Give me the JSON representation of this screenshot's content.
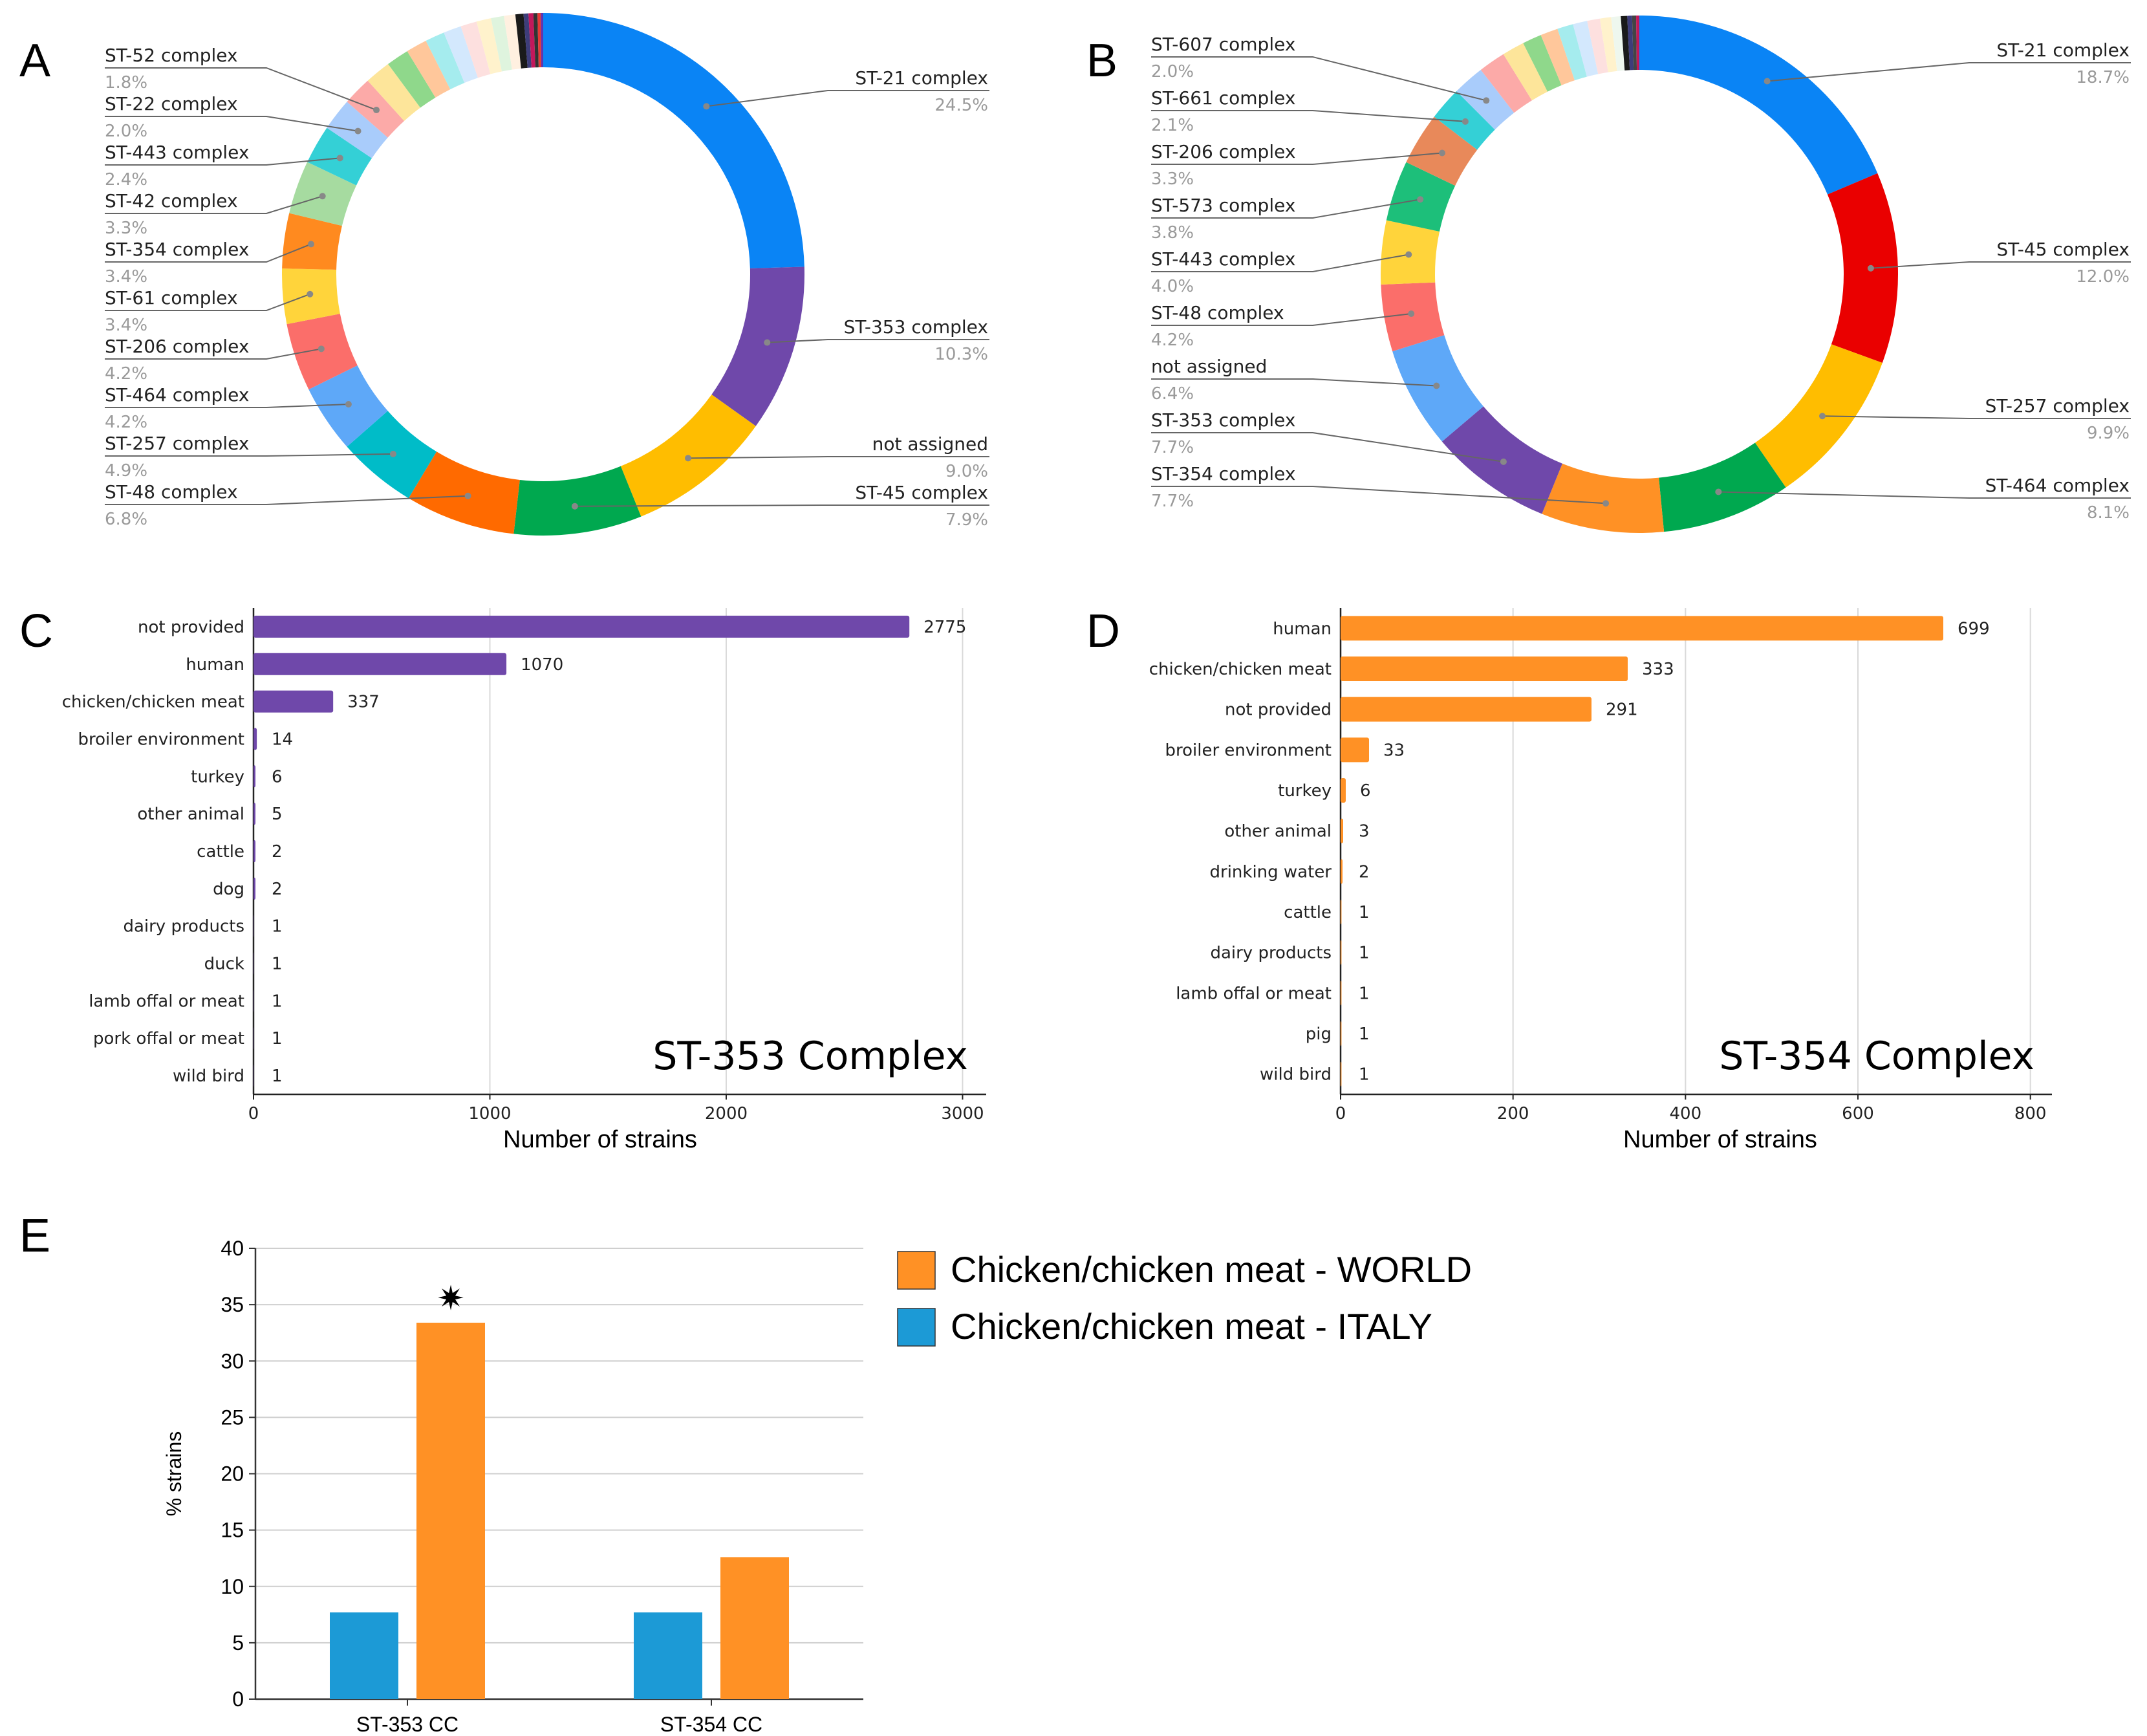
{
  "panels": {
    "A": "A",
    "B": "B",
    "C": "C",
    "D": "D",
    "E": "E"
  },
  "chart_data": [
    {
      "id": "A",
      "type": "pie",
      "style": "donut",
      "slices": [
        {
          "label": "ST-21 complex",
          "value": 24.5,
          "pct": "24.5%",
          "color": "#0a84f5",
          "labeled": true
        },
        {
          "label": "ST-353 complex",
          "value": 10.3,
          "pct": "10.3%",
          "color": "#6f48aa",
          "labeled": true
        },
        {
          "label": "not assigned",
          "value": 9.0,
          "pct": "9.0%",
          "color": "#ffbd00",
          "labeled": true
        },
        {
          "label": "ST-45 complex",
          "value": 7.9,
          "pct": "7.9%",
          "color": "#00a84f",
          "labeled": true
        },
        {
          "label": "ST-48 complex",
          "value": 6.8,
          "pct": "6.8%",
          "color": "#ff6a00",
          "labeled": true
        },
        {
          "label": "ST-257 complex",
          "value": 4.9,
          "pct": "4.9%",
          "color": "#00bcc8",
          "labeled": true
        },
        {
          "label": "ST-464 complex",
          "value": 4.2,
          "pct": "4.2%",
          "color": "#5ea8f8",
          "labeled": true
        },
        {
          "label": "ST-206 complex",
          "value": 4.2,
          "pct": "4.2%",
          "color": "#fb6e6a",
          "labeled": true
        },
        {
          "label": "ST-61 complex",
          "value": 3.4,
          "pct": "3.4%",
          "color": "#ffd43b",
          "labeled": true
        },
        {
          "label": "ST-354 complex",
          "value": 3.4,
          "pct": "3.4%",
          "color": "#ff8a1f",
          "labeled": true
        },
        {
          "label": "ST-42 complex",
          "value": 3.3,
          "pct": "3.3%",
          "color": "#a6dba0",
          "labeled": true
        },
        {
          "label": "ST-443 complex",
          "value": 2.4,
          "pct": "2.4%",
          "color": "#34d0d6",
          "labeled": true
        },
        {
          "label": "ST-22 complex",
          "value": 2.0,
          "pct": "2.0%",
          "color": "#a9ccfb",
          "labeled": true
        },
        {
          "label": "ST-52 complex",
          "value": 1.8,
          "pct": "1.8%",
          "color": "#fcaaa8",
          "labeled": true
        },
        {
          "label": "",
          "value": 1.6,
          "pct": "",
          "color": "#fde59a",
          "labeled": false
        },
        {
          "label": "",
          "value": 1.4,
          "pct": "",
          "color": "#8fd88b",
          "labeled": false
        },
        {
          "label": "",
          "value": 1.3,
          "pct": "",
          "color": "#ffc79b",
          "labeled": false
        },
        {
          "label": "",
          "value": 1.2,
          "pct": "",
          "color": "#a5ecee",
          "labeled": false
        },
        {
          "label": "",
          "value": 1.1,
          "pct": "",
          "color": "#d3e8fd",
          "labeled": false
        },
        {
          "label": "",
          "value": 1.0,
          "pct": "",
          "color": "#fde0df",
          "labeled": false
        },
        {
          "label": "",
          "value": 0.9,
          "pct": "",
          "color": "#fff2cc",
          "labeled": false
        },
        {
          "label": "",
          "value": 0.8,
          "pct": "",
          "color": "#dff4de",
          "labeled": false
        },
        {
          "label": "",
          "value": 0.7,
          "pct": "",
          "color": "#fff0e0",
          "labeled": false
        },
        {
          "label": "",
          "value": 0.5,
          "pct": "",
          "color": "#1a1a1a",
          "labeled": false
        },
        {
          "label": "",
          "value": 0.3,
          "pct": "",
          "color": "#3d3d7a",
          "labeled": false
        },
        {
          "label": "",
          "value": 0.3,
          "pct": "",
          "color": "#c2185b",
          "labeled": false
        },
        {
          "label": "",
          "value": 0.25,
          "pct": "",
          "color": "#333333",
          "labeled": false
        },
        {
          "label": "",
          "value": 0.2,
          "pct": "",
          "color": "#e53935",
          "labeled": false
        },
        {
          "label": "",
          "value": 0.15,
          "pct": "",
          "color": "#5e35b1",
          "labeled": false
        }
      ]
    },
    {
      "id": "B",
      "type": "pie",
      "style": "donut",
      "slices": [
        {
          "label": "ST-21 complex",
          "value": 18.7,
          "pct": "18.7%",
          "color": "#0a84f5",
          "labeled": true
        },
        {
          "label": "ST-45 complex",
          "value": 12.0,
          "pct": "12.0%",
          "color": "#ea0000",
          "labeled": true
        },
        {
          "label": "ST-257 complex",
          "value": 9.9,
          "pct": "9.9%",
          "color": "#ffbd00",
          "labeled": true
        },
        {
          "label": "ST-464 complex",
          "value": 8.1,
          "pct": "8.1%",
          "color": "#00a84f",
          "labeled": true
        },
        {
          "label": "ST-354 complex",
          "value": 7.7,
          "pct": "7.7%",
          "color": "#ff9125",
          "labeled": true
        },
        {
          "label": "ST-353 complex",
          "value": 7.7,
          "pct": "7.7%",
          "color": "#6f48aa",
          "labeled": true
        },
        {
          "label": "not assigned",
          "value": 6.4,
          "pct": "6.4%",
          "color": "#5ea8f8",
          "labeled": true
        },
        {
          "label": "ST-48 complex",
          "value": 4.2,
          "pct": "4.2%",
          "color": "#fb6e6a",
          "labeled": true
        },
        {
          "label": "ST-443 complex",
          "value": 4.0,
          "pct": "4.0%",
          "color": "#ffd43b",
          "labeled": true
        },
        {
          "label": "ST-573 complex",
          "value": 3.8,
          "pct": "3.8%",
          "color": "#1dbf7a",
          "labeled": true
        },
        {
          "label": "ST-206 complex",
          "value": 3.3,
          "pct": "3.3%",
          "color": "#e8895a",
          "labeled": true
        },
        {
          "label": "ST-661 complex",
          "value": 2.1,
          "pct": "2.1%",
          "color": "#34d0d6",
          "labeled": true
        },
        {
          "label": "ST-607 complex",
          "value": 2.0,
          "pct": "2.0%",
          "color": "#a9ccfb",
          "labeled": true
        },
        {
          "label": "",
          "value": 1.7,
          "pct": "",
          "color": "#fcaaa8",
          "labeled": false
        },
        {
          "label": "",
          "value": 1.4,
          "pct": "",
          "color": "#fde59a",
          "labeled": false
        },
        {
          "label": "",
          "value": 1.2,
          "pct": "",
          "color": "#8fd88b",
          "labeled": false
        },
        {
          "label": "",
          "value": 1.1,
          "pct": "",
          "color": "#ffc79b",
          "labeled": false
        },
        {
          "label": "",
          "value": 1.0,
          "pct": "",
          "color": "#a5ecee",
          "labeled": false
        },
        {
          "label": "",
          "value": 0.9,
          "pct": "",
          "color": "#d3e8fd",
          "labeled": false
        },
        {
          "label": "",
          "value": 0.8,
          "pct": "",
          "color": "#fde0df",
          "labeled": false
        },
        {
          "label": "",
          "value": 0.7,
          "pct": "",
          "color": "#fff2cc",
          "labeled": false
        },
        {
          "label": "",
          "value": 0.6,
          "pct": "",
          "color": "#eef7ee",
          "labeled": false
        },
        {
          "label": "",
          "value": 0.4,
          "pct": "",
          "color": "#1a1a1a",
          "labeled": false
        },
        {
          "label": "",
          "value": 0.3,
          "pct": "",
          "color": "#3d3d7a",
          "labeled": false
        },
        {
          "label": "",
          "value": 0.25,
          "pct": "",
          "color": "#444444",
          "labeled": false
        },
        {
          "label": "",
          "value": 0.2,
          "pct": "",
          "color": "#c2185b",
          "labeled": false
        }
      ]
    },
    {
      "id": "C",
      "type": "bar",
      "orientation": "horizontal",
      "title": "ST-353 Complex",
      "xlabel": "Number of strains",
      "xlim": [
        0,
        3100
      ],
      "ticks": [
        0,
        1000,
        2000,
        3000
      ],
      "color": "#6f48aa",
      "categories": [
        "not provided",
        "human",
        "chicken/chicken meat",
        "broiler environment",
        "turkey",
        "other animal",
        "cattle",
        "dog",
        "dairy products",
        "duck",
        "lamb offal or meat",
        "pork offal or meat",
        "wild bird"
      ],
      "values": [
        2775,
        1070,
        337,
        14,
        6,
        5,
        2,
        2,
        1,
        1,
        1,
        1,
        1
      ]
    },
    {
      "id": "D",
      "type": "bar",
      "orientation": "horizontal",
      "title": "ST-354 Complex",
      "xlabel": "Number of strains",
      "xlim": [
        0,
        825
      ],
      "ticks": [
        0,
        200,
        400,
        600,
        800
      ],
      "color": "#ff9125",
      "categories": [
        "human",
        "chicken/chicken meat",
        "not provided",
        "broiler environment",
        "turkey",
        "other animal",
        "drinking water",
        "cattle",
        "dairy products",
        "lamb offal or meat",
        "pig",
        "wild bird"
      ],
      "values": [
        699,
        333,
        291,
        33,
        6,
        3,
        2,
        1,
        1,
        1,
        1,
        1
      ]
    },
    {
      "id": "E",
      "type": "bar",
      "ylabel": "% strains",
      "ylim": [
        0,
        40
      ],
      "ticks": [
        0,
        5,
        10,
        15,
        20,
        25,
        30,
        35,
        40
      ],
      "categories": [
        "ST-353 CC",
        "ST-354 CC"
      ],
      "series": [
        {
          "name": "Chicken/chicken meat - ITALY",
          "color": "#1c9ad6",
          "values": [
            7.7,
            7.7
          ]
        },
        {
          "name": "Chicken/chicken meat - WORLD",
          "color": "#ff9125",
          "values": [
            33.4,
            12.6
          ]
        }
      ],
      "legend_order": [
        "Chicken/chicken meat - WORLD",
        "Chicken/chicken meat - ITALY"
      ],
      "annotation": {
        "category": "ST-353 CC",
        "series": "Chicken/chicken meat - WORLD",
        "symbol": "✷"
      }
    }
  ]
}
